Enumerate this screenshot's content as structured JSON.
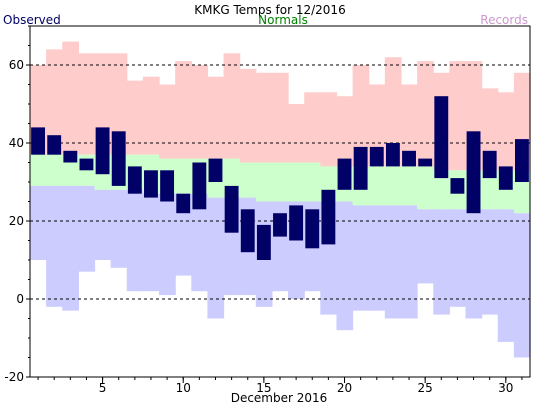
{
  "chart_data": {
    "type": "bar",
    "title": "KMKG Temps for 12/2016",
    "xlabel": "December 2016",
    "ylabel": "",
    "legend": {
      "observed": "Observed",
      "normals": "Normals",
      "records": "Records"
    },
    "colors": {
      "observed": "#000066",
      "normals": "#008000",
      "records": "#cc99cc",
      "record_high_band": "#ffcccc",
      "normal_band": "#ccffcc",
      "record_low_band": "#ccccff",
      "grid": "#000000"
    },
    "ylim": [
      -20,
      70
    ],
    "yticks": [
      -20,
      0,
      20,
      40,
      60
    ],
    "xlim": [
      0.5,
      31.5
    ],
    "xticks": [
      5,
      10,
      15,
      20,
      25,
      30
    ],
    "grid_lines": [
      0,
      20,
      40,
      60
    ],
    "days": [
      1,
      2,
      3,
      4,
      5,
      6,
      7,
      8,
      9,
      10,
      11,
      12,
      13,
      14,
      15,
      16,
      17,
      18,
      19,
      20,
      21,
      22,
      23,
      24,
      25,
      26,
      27,
      28,
      29,
      30,
      31
    ],
    "observed_high": [
      44,
      42,
      38,
      36,
      44,
      43,
      34,
      33,
      33,
      27,
      35,
      36,
      29,
      23,
      19,
      22,
      24,
      23,
      28,
      36,
      39,
      39,
      40,
      38,
      36,
      52,
      31,
      43,
      38,
      34,
      41
    ],
    "observed_low": [
      37,
      37,
      35,
      33,
      32,
      29,
      27,
      26,
      25,
      22,
      23,
      30,
      17,
      12,
      10,
      16,
      15,
      13,
      14,
      28,
      28,
      34,
      34,
      34,
      34,
      31,
      27,
      22,
      31,
      28,
      30
    ],
    "normal_high": [
      37,
      37,
      37,
      37,
      37,
      37,
      37,
      37,
      36,
      36,
      36,
      36,
      36,
      35,
      35,
      35,
      35,
      35,
      34,
      34,
      34,
      34,
      34,
      34,
      34,
      33,
      33,
      33,
      33,
      33,
      33
    ],
    "normal_low": [
      29,
      29,
      29,
      29,
      28,
      28,
      28,
      27,
      27,
      27,
      27,
      26,
      26,
      26,
      25,
      25,
      25,
      25,
      25,
      25,
      24,
      24,
      24,
      24,
      23,
      23,
      23,
      23,
      23,
      23,
      22
    ],
    "record_high": [
      60,
      64,
      66,
      63,
      63,
      63,
      56,
      57,
      55,
      61,
      60,
      57,
      63,
      59,
      58,
      58,
      50,
      53,
      53,
      52,
      60,
      55,
      62,
      55,
      61,
      58,
      61,
      61,
      54,
      53,
      58
    ],
    "record_low": [
      10,
      -2,
      -3,
      7,
      10,
      8,
      2,
      2,
      1,
      6,
      2,
      -5,
      1,
      1,
      -2,
      2,
      0,
      2,
      -4,
      -8,
      -3,
      -3,
      -5,
      -5,
      4,
      -4,
      -2,
      -5,
      -4,
      -11,
      -15
    ]
  }
}
